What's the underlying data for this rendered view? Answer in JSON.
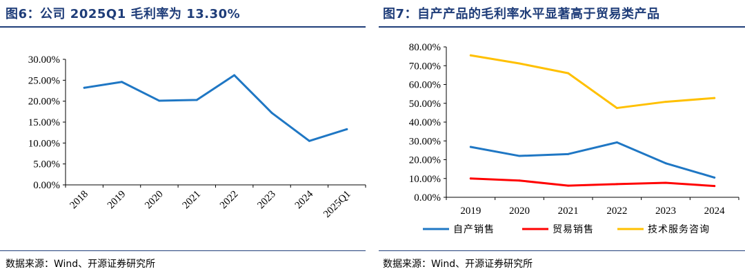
{
  "left": {
    "title": "图6：公司 2025Q1 毛利率为 13.30%",
    "source": "数据来源：Wind、开源证券研究所"
  },
  "right": {
    "title": "图7：自产产品的毛利率水平显著高于贸易类产品",
    "source": "数据来源：Wind、开源证券研究所"
  },
  "chart_data": [
    {
      "type": "line",
      "title": "图6：公司 2025Q1 毛利率为 13.30%",
      "categories": [
        "2018",
        "2019",
        "2020",
        "2021",
        "2022",
        "2023",
        "2024",
        "2025Q1"
      ],
      "series": [
        {
          "values": [
            23.2,
            24.6,
            20.1,
            20.3,
            26.2,
            17.2,
            10.5,
            13.3
          ],
          "color": "#1f77c4"
        }
      ],
      "ylim": [
        0,
        30
      ],
      "yticks": [
        "0.00%",
        "5.00%",
        "10.00%",
        "15.00%",
        "20.00%",
        "25.00%",
        "30.00%"
      ],
      "y_unit": "%",
      "xtick_rotation": "-45deg",
      "grid": false,
      "legend": "none"
    },
    {
      "type": "line",
      "title": "图7：自产产品的毛利率水平显著高于贸易类产品",
      "categories": [
        "2019",
        "2020",
        "2021",
        "2022",
        "2023",
        "2024"
      ],
      "series": [
        {
          "name": "自产销售",
          "values": [
            26.8,
            22.0,
            23.0,
            29.2,
            18.1,
            10.5
          ],
          "color": "#1f77c4"
        },
        {
          "name": "贸易销售",
          "values": [
            10.0,
            8.9,
            6.2,
            7.0,
            7.7,
            6.0
          ],
          "color": "#ff0000"
        },
        {
          "name": "技术服务咨询",
          "values": [
            75.5,
            71.2,
            66.0,
            47.5,
            50.8,
            52.8
          ],
          "color": "#ffc000"
        }
      ],
      "ylim": [
        0,
        80
      ],
      "yticks": [
        "0.00%",
        "10.00%",
        "20.00%",
        "30.00%",
        "40.00%",
        "50.00%",
        "60.00%",
        "70.00%",
        "80.00%"
      ],
      "y_unit": "%",
      "grid": false,
      "legend": "bottom"
    }
  ]
}
